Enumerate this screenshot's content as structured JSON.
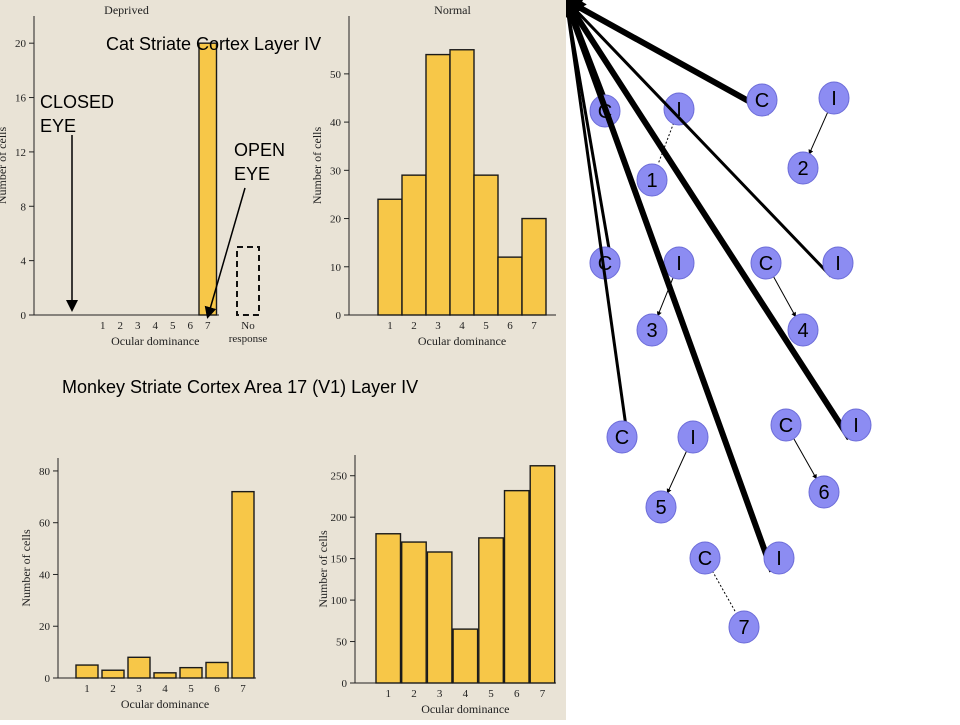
{
  "titles": {
    "cat": "Cat Striate Cortex Layer IV",
    "monkey": "Monkey Striate Cortex Area 17 (V1) Layer IV"
  },
  "annotations": {
    "closed_line1": "CLOSED",
    "closed_line2": "EYE",
    "open_line1": "OPEN",
    "open_line2": "EYE"
  },
  "colors": {
    "bar_fill": "#f7c748",
    "bar_stroke": "#1a1a1a",
    "node_fill": "#8c8cf2",
    "node_stroke": "#6c6cd8",
    "page_bg": "#e9e3d6"
  },
  "chart_data": [
    {
      "type": "bar",
      "subtitle": "Deprived",
      "xlabel": "Ocular dominance",
      "ylabel": "Number of cells",
      "categories": [
        "1",
        "2",
        "3",
        "4",
        "5",
        "6",
        "7"
      ],
      "values": [
        0,
        0,
        0,
        0,
        0,
        0,
        20
      ],
      "extra_category": {
        "label_line1": "No",
        "label_line2": "response",
        "value": 5
      },
      "ylim": [
        0,
        22
      ],
      "yticks": [
        0,
        4,
        8,
        12,
        16,
        20
      ]
    },
    {
      "type": "bar",
      "subtitle": "Normal",
      "xlabel": "Ocular dominance",
      "ylabel": "Number of cells",
      "categories": [
        "1",
        "2",
        "3",
        "4",
        "5",
        "6",
        "7"
      ],
      "values": [
        24,
        29,
        54,
        55,
        29,
        12,
        20
      ],
      "ylim": [
        0,
        62
      ],
      "yticks": [
        0,
        10,
        20,
        30,
        40,
        50
      ]
    },
    {
      "type": "bar",
      "xlabel": "Ocular dominance",
      "ylabel": "Number of cells",
      "categories": [
        "1",
        "2",
        "3",
        "4",
        "5",
        "6",
        "7"
      ],
      "values": [
        5,
        3,
        8,
        2,
        4,
        6,
        72
      ],
      "ylim": [
        0,
        85
      ],
      "yticks": [
        0,
        20,
        40,
        60,
        80
      ]
    },
    {
      "type": "bar",
      "xlabel": "Ocular dominance",
      "ylabel": "Number of cells",
      "categories": [
        "1",
        "2",
        "3",
        "4",
        "5",
        "6",
        "7"
      ],
      "values": [
        180,
        170,
        158,
        65,
        175,
        232,
        262
      ],
      "ylim": [
        0,
        275
      ],
      "yticks": [
        0,
        50,
        100,
        150,
        200,
        250
      ]
    }
  ],
  "diagram": {
    "contra_label": "C",
    "ipsi_label": "I",
    "nodes": [
      {
        "label": "1",
        "contra_weight": "strong",
        "ipsi_weight": "dotted"
      },
      {
        "label": "2",
        "contra_weight": "strong",
        "ipsi_weight": "thin"
      },
      {
        "label": "3",
        "contra_weight": "medium",
        "ipsi_weight": "thin"
      },
      {
        "label": "4",
        "contra_weight": "thin",
        "ipsi_weight": "medium"
      },
      {
        "label": "5",
        "contra_weight": "medium",
        "ipsi_weight": "thin"
      },
      {
        "label": "6",
        "contra_weight": "thin",
        "ipsi_weight": "strong"
      },
      {
        "label": "7",
        "contra_weight": "dotted",
        "ipsi_weight": "strong"
      }
    ]
  }
}
